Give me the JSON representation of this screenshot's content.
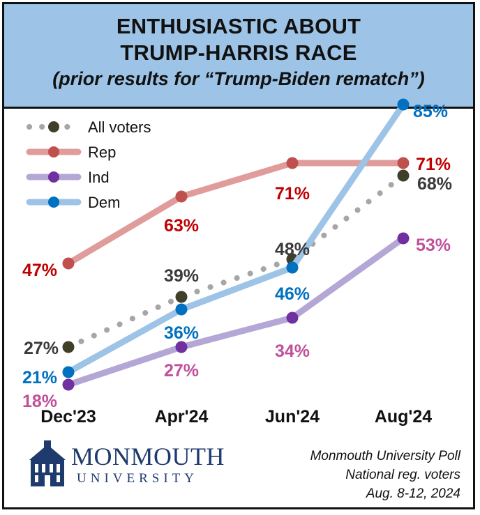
{
  "header": {
    "title_line1": "ENTHUSIASTIC ABOUT",
    "title_line2": "TRUMP-HARRIS RACE",
    "subtitle": "(prior results for “Trump-Biden rematch”)"
  },
  "chart_data": {
    "type": "line",
    "categories": [
      "Dec'23",
      "Apr'24",
      "Jun'24",
      "Aug'24"
    ],
    "ylim": [
      10,
      90
    ],
    "xlabel": "",
    "ylabel": "",
    "legend_position": "top-left",
    "series": [
      {
        "name": "All voters",
        "values": [
          27,
          39,
          48,
          68
        ],
        "labels": [
          "27%",
          "39%",
          "48%",
          "68%"
        ],
        "line_color": "#a6a6a6",
        "marker_color": "#3f3f2a",
        "label_color": "#3a3a3a",
        "style": "dotted"
      },
      {
        "name": "Rep",
        "values": [
          47,
          63,
          71,
          71
        ],
        "labels": [
          "47%",
          "63%",
          "71%",
          "71%"
        ],
        "line_color": "#e09b9b",
        "marker_color": "#c0504d",
        "label_color": "#c00000",
        "style": "solid"
      },
      {
        "name": "Ind",
        "values": [
          18,
          27,
          34,
          53
        ],
        "labels": [
          "18%",
          "27%",
          "34%",
          "53%"
        ],
        "line_color": "#b4a7d6",
        "marker_color": "#7030a0",
        "label_color": "#c0509a",
        "style": "solid"
      },
      {
        "name": "Dem",
        "values": [
          21,
          36,
          46,
          85
        ],
        "labels": [
          "21%",
          "36%",
          "46%",
          "85%"
        ],
        "line_color": "#9dc3e6",
        "marker_color": "#0070c0",
        "label_color": "#0070c0",
        "style": "solid"
      }
    ]
  },
  "footer": {
    "logo_name": "MONMOUTH",
    "logo_sub": "UNIVERSITY",
    "source_line1": "Monmouth University Poll",
    "source_line2": "National reg. voters",
    "source_line3": "Aug. 8-12, 2024"
  }
}
